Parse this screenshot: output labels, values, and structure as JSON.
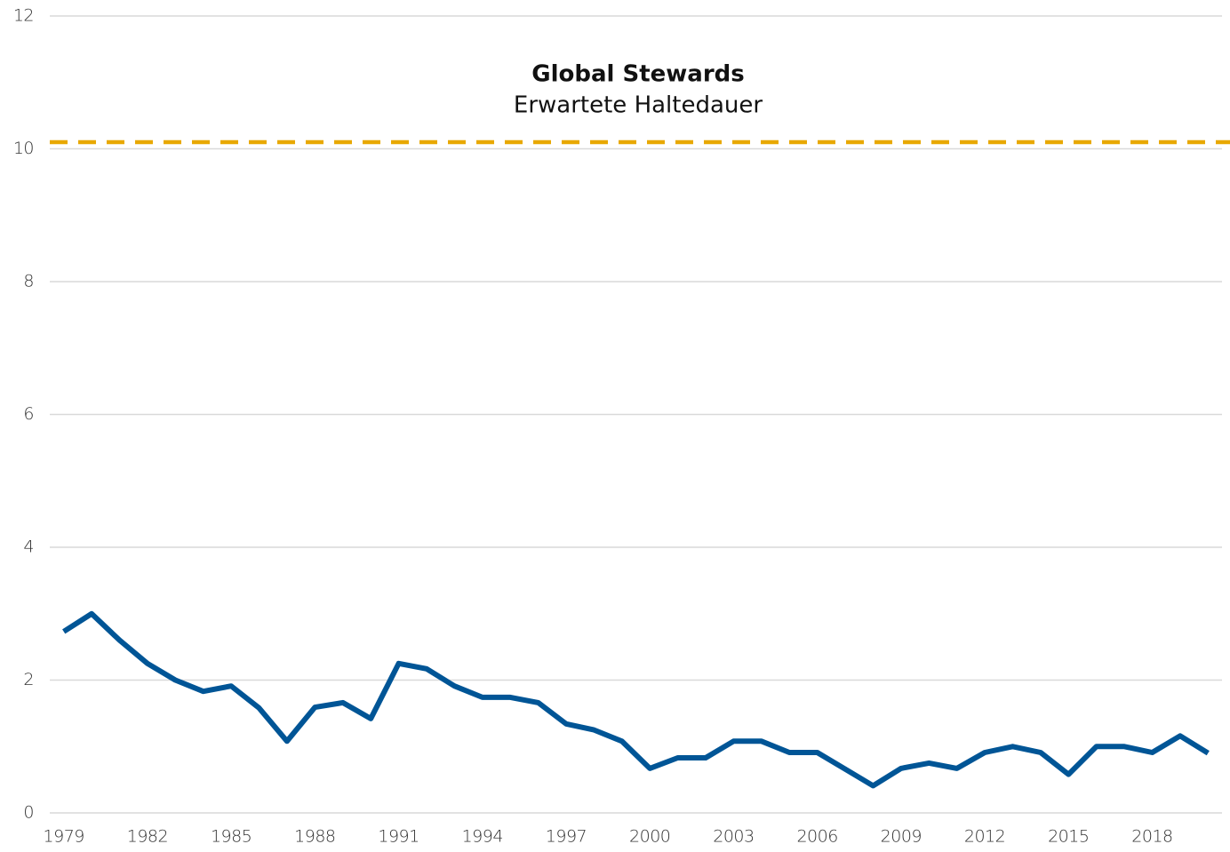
{
  "chart_data": {
    "type": "line",
    "title": "Global Stewards",
    "subtitle": "Erwartete Haltedauer",
    "categories": [
      "1979",
      null,
      null,
      "1982",
      null,
      null,
      "1985",
      null,
      null,
      "1988",
      null,
      null,
      "1991",
      null,
      null,
      "1994",
      null,
      null,
      "1997",
      null,
      null,
      "2000",
      null,
      null,
      "2003",
      null,
      null,
      "2006",
      null,
      null,
      "2009",
      null,
      null,
      "2012",
      null,
      null,
      "2015",
      null,
      null,
      "2018",
      null,
      null
    ],
    "series": [
      {
        "color": "#005596",
        "values": [
          2.73,
          3.0,
          2.6,
          2.25,
          2.0,
          1.83,
          1.91,
          1.58,
          1.08,
          1.59,
          1.66,
          1.42,
          2.25,
          2.17,
          1.91,
          1.74,
          1.74,
          1.66,
          1.34,
          1.25,
          1.08,
          0.67,
          0.83,
          0.83,
          1.08,
          1.08,
          0.91,
          0.91,
          0.66,
          0.41,
          0.67,
          0.75,
          0.67,
          0.91,
          1.0,
          0.91,
          0.58,
          1.0,
          1.0,
          0.91,
          1.16,
          0.9
        ]
      }
    ],
    "reference_line": {
      "value": 10.1,
      "color": "#e8a800",
      "dashed": true
    },
    "ylim": [
      0,
      12
    ],
    "yticks": [
      0,
      2,
      4,
      6,
      8,
      10,
      12
    ],
    "grid": true
  }
}
